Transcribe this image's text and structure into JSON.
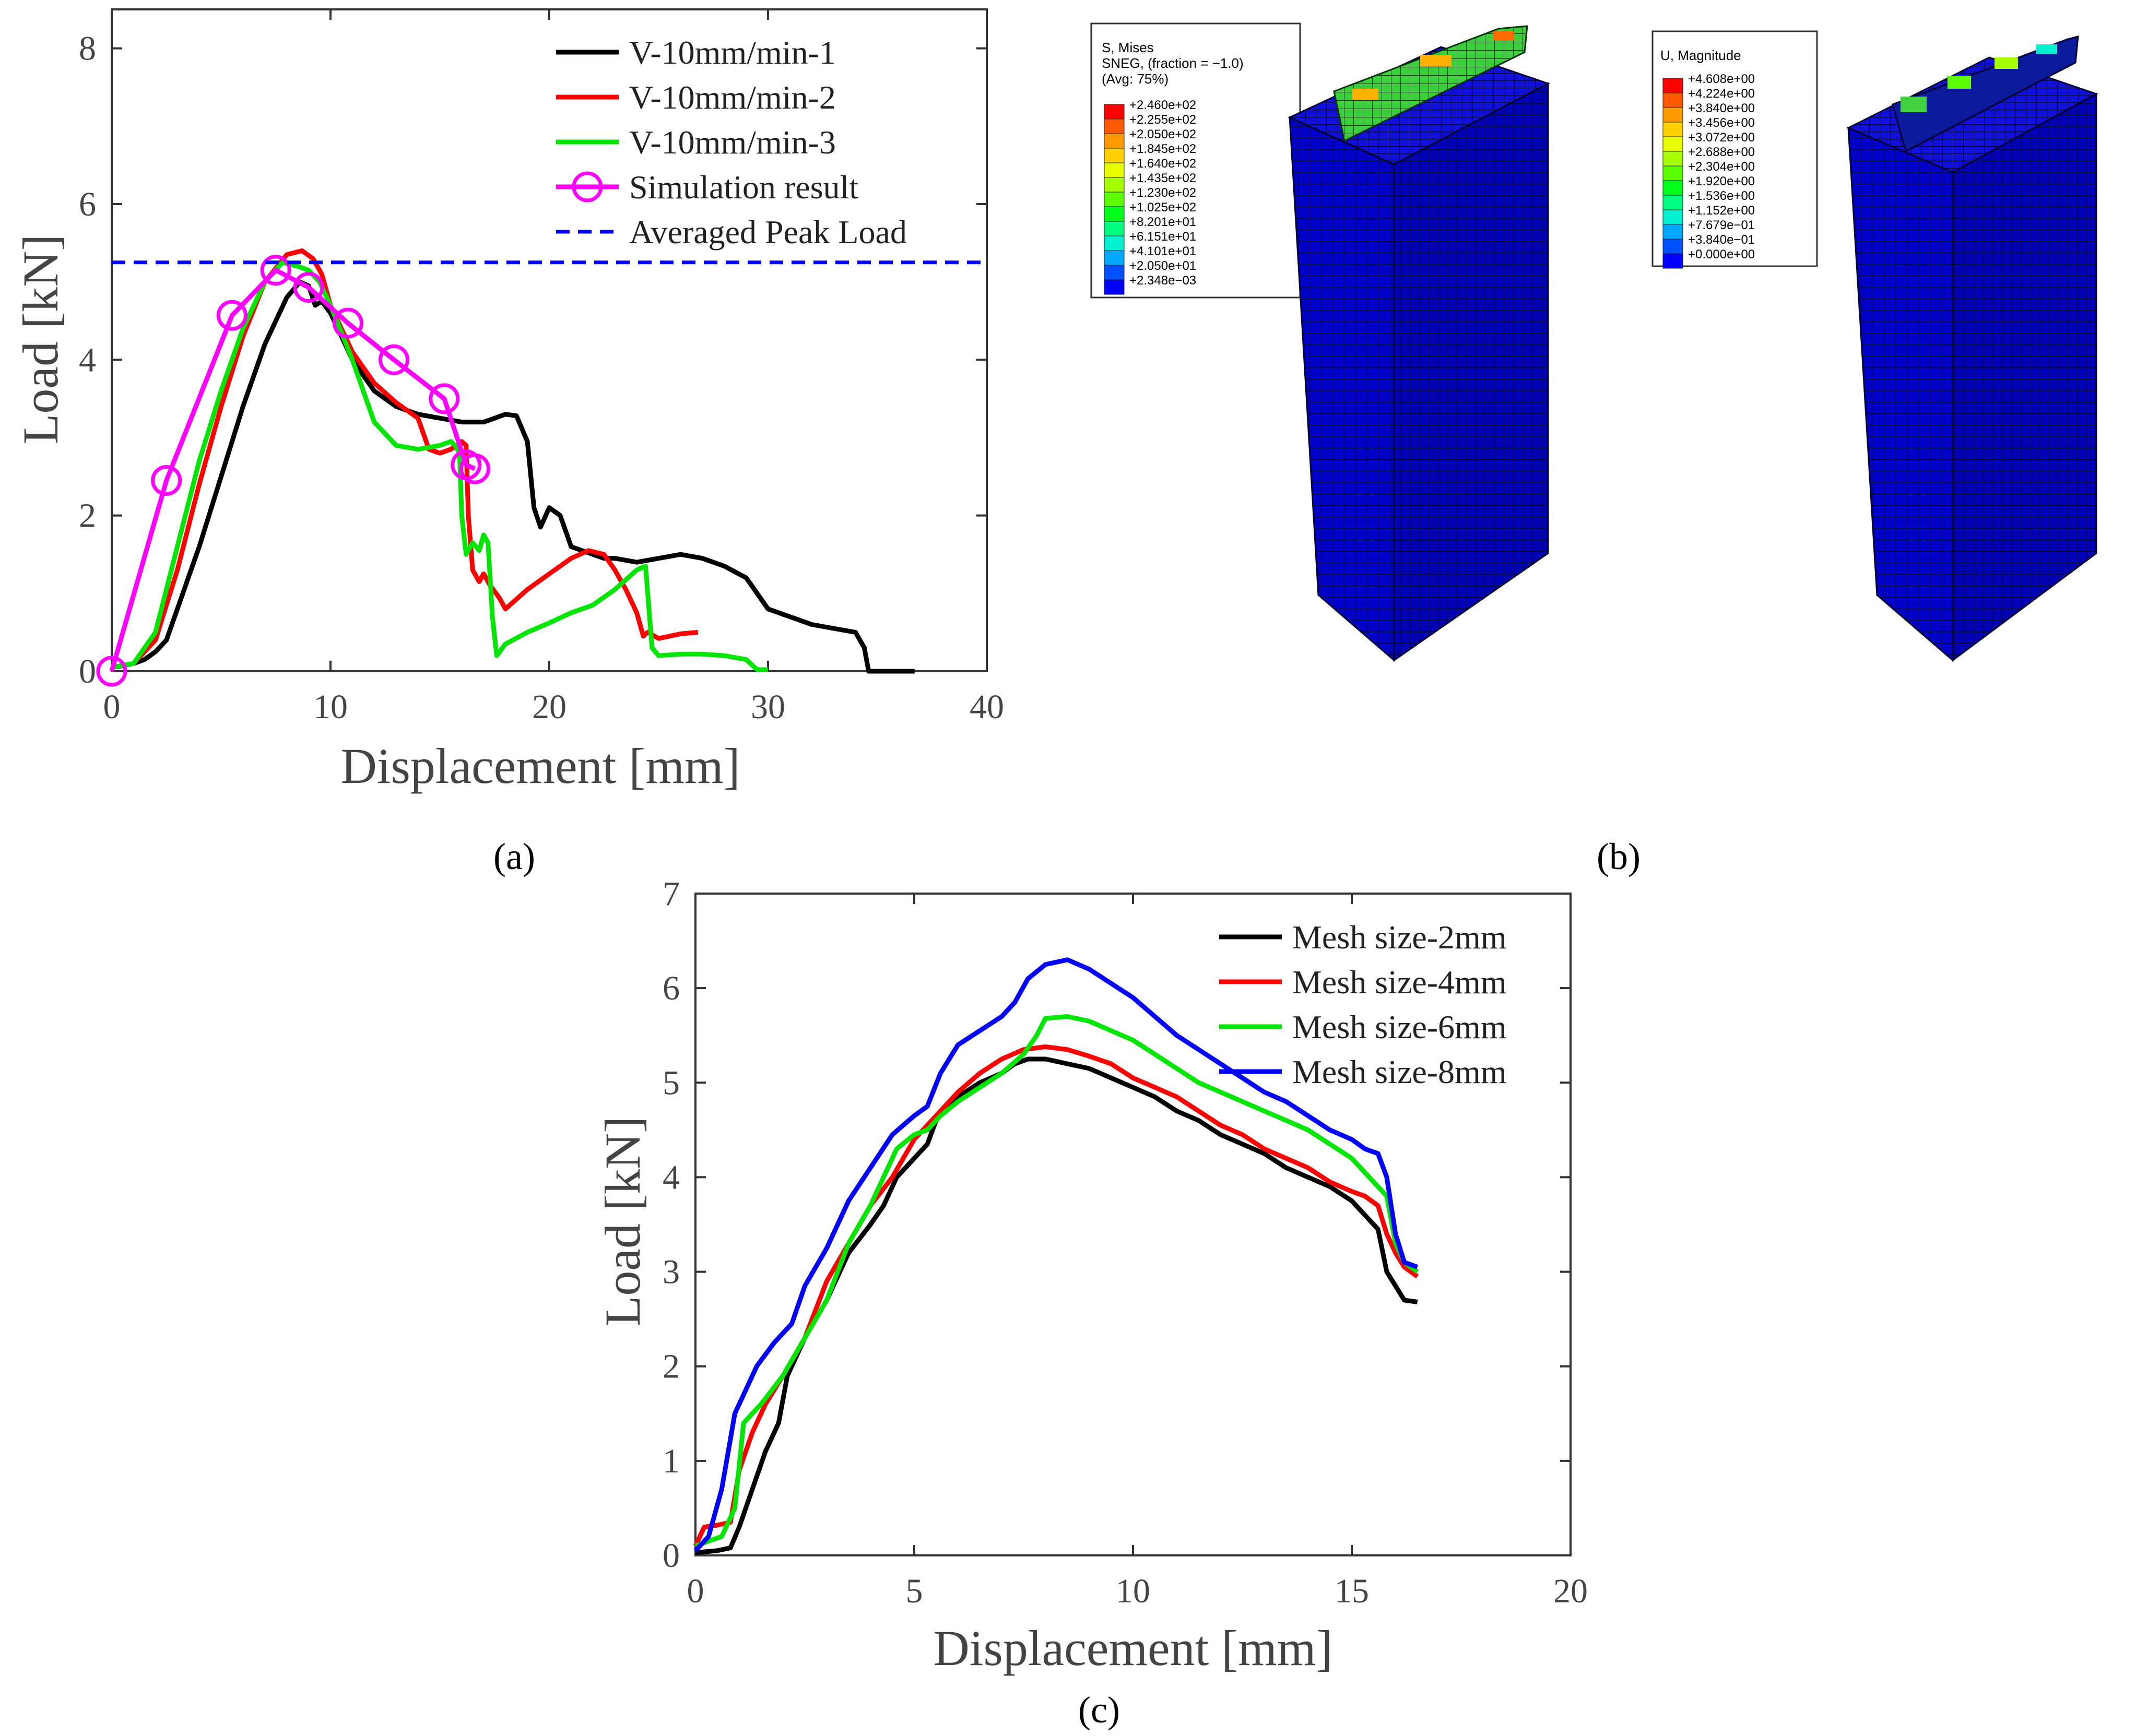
{
  "chart_data": [
    {
      "id": "a",
      "type": "line",
      "panel_label": "(a)",
      "xlabel": "Displacement [mm]",
      "ylabel": "Load [kN]",
      "xlim": [
        0,
        40
      ],
      "ylim": [
        0,
        8.5
      ],
      "xticks": [
        0,
        10,
        20,
        30,
        40
      ],
      "yticks": [
        0,
        2,
        4,
        6,
        8
      ],
      "legend_position": "top-right",
      "series": [
        {
          "name": "V-10mm/min-1",
          "color": "#000000",
          "style": "solid",
          "x": [
            0,
            0.5,
            1,
            1.5,
            2,
            2.5,
            3,
            4,
            5,
            6,
            7,
            8,
            8.6,
            9,
            9.3,
            9.6,
            10,
            10.5,
            11,
            12,
            13,
            14,
            15,
            16,
            17,
            17.5,
            18,
            18.5,
            19,
            19.3,
            19.6,
            20,
            20.5,
            21,
            21.5,
            22,
            22.5,
            23,
            24,
            25,
            26,
            27,
            28,
            29,
            29.5,
            30,
            31,
            32,
            33,
            34,
            34.4,
            34.6,
            35,
            36,
            36.7
          ],
          "y": [
            0.05,
            0.07,
            0.1,
            0.15,
            0.25,
            0.4,
            0.8,
            1.6,
            2.5,
            3.4,
            4.2,
            4.8,
            5.0,
            4.95,
            4.7,
            4.75,
            4.6,
            4.3,
            4.0,
            3.6,
            3.4,
            3.3,
            3.25,
            3.2,
            3.2,
            3.25,
            3.3,
            3.28,
            2.95,
            2.1,
            1.85,
            2.1,
            2.0,
            1.6,
            1.55,
            1.5,
            1.45,
            1.45,
            1.4,
            1.45,
            1.5,
            1.45,
            1.35,
            1.2,
            1.0,
            0.8,
            0.7,
            0.6,
            0.55,
            0.5,
            0.3,
            0.0,
            0.0,
            0.0,
            0.0
          ]
        },
        {
          "name": "V-10mm/min-2",
          "color": "#ff0000",
          "style": "solid",
          "x": [
            0,
            1,
            2,
            3,
            4,
            5,
            6,
            7,
            8,
            8.7,
            9.2,
            9.6,
            10,
            11,
            12,
            13,
            14,
            14.5,
            15,
            15.5,
            16,
            16.2,
            16.3,
            16.5,
            16.8,
            17,
            17.3,
            17.7,
            18,
            19,
            20,
            21,
            21.8,
            22.5,
            23,
            23.5,
            24,
            24.3,
            24.5,
            25,
            26,
            26.8
          ],
          "y": [
            0.05,
            0.1,
            0.4,
            1.3,
            2.4,
            3.4,
            4.3,
            5.0,
            5.35,
            5.4,
            5.3,
            5.1,
            4.7,
            4.1,
            3.7,
            3.45,
            3.25,
            2.85,
            2.8,
            2.85,
            2.95,
            2.9,
            2.0,
            1.3,
            1.15,
            1.25,
            1.1,
            0.95,
            0.8,
            1.05,
            1.25,
            1.45,
            1.55,
            1.5,
            1.3,
            1.05,
            0.75,
            0.45,
            0.5,
            0.42,
            0.48,
            0.5
          ]
        },
        {
          "name": "V-10mm/min-3",
          "color": "#00e600",
          "style": "solid",
          "x": [
            0,
            1,
            2,
            3,
            4,
            5,
            6,
            7,
            7.8,
            8.5,
            9,
            9.5,
            10,
            11,
            12,
            13,
            14,
            15,
            15.5,
            15.7,
            15.9,
            16,
            16.2,
            16.5,
            16.8,
            17,
            17.2,
            17.4,
            17.6,
            18,
            19,
            20,
            21,
            22,
            23,
            24,
            24.4,
            24.7,
            25,
            26,
            27,
            28,
            29,
            29.5,
            30
          ],
          "y": [
            0.05,
            0.1,
            0.5,
            1.6,
            2.7,
            3.6,
            4.4,
            5.0,
            5.25,
            5.2,
            5.15,
            5.0,
            4.7,
            4.0,
            3.2,
            2.9,
            2.85,
            2.9,
            2.95,
            2.9,
            2.8,
            2.0,
            1.5,
            1.65,
            1.55,
            1.75,
            1.65,
            0.7,
            0.2,
            0.35,
            0.5,
            0.62,
            0.75,
            0.85,
            1.05,
            1.3,
            1.35,
            0.3,
            0.2,
            0.22,
            0.22,
            0.2,
            0.15,
            0.02,
            0.02
          ]
        },
        {
          "name": "Simulation result",
          "color": "#ff00ff",
          "style": "solid",
          "marker": "circle",
          "x": [
            0,
            2.5,
            5.5,
            7.5,
            9.0,
            10.8,
            12.9,
            15.2,
            16.2,
            16.6
          ],
          "y": [
            0,
            2.45,
            4.57,
            5.15,
            4.93,
            4.47,
            4.0,
            3.5,
            2.65,
            2.6
          ]
        },
        {
          "name": "Averaged Peak Load",
          "color": "#0000ff",
          "style": "dashed",
          "x": [
            0,
            40
          ],
          "y": [
            5.25,
            5.25
          ]
        }
      ]
    },
    {
      "id": "c",
      "type": "line",
      "panel_label": "(c)",
      "xlabel": "Displacement [mm]",
      "ylabel": "Load [kN]",
      "xlim": [
        0,
        20
      ],
      "ylim": [
        0,
        7
      ],
      "xticks": [
        0,
        5,
        10,
        15,
        20
      ],
      "yticks": [
        0,
        1,
        2,
        3,
        4,
        5,
        6,
        7
      ],
      "legend_position": "top-right",
      "series": [
        {
          "name": "Mesh size-2mm",
          "color": "#000000",
          "x": [
            0,
            0.5,
            0.8,
            1,
            1.3,
            1.6,
            1.9,
            2.1,
            2.5,
            3,
            3.5,
            4,
            4.3,
            4.6,
            5,
            5.3,
            5.5,
            6,
            6.5,
            7,
            7.3,
            7.6,
            8,
            8.5,
            9,
            9.5,
            10,
            10.5,
            11,
            11.5,
            12,
            12.5,
            13,
            13.5,
            14,
            14.5,
            15,
            15.3,
            15.6,
            15.8,
            16,
            16.2,
            16.5
          ],
          "y": [
            0.03,
            0.05,
            0.08,
            0.3,
            0.7,
            1.1,
            1.4,
            1.9,
            2.3,
            2.7,
            3.2,
            3.5,
            3.7,
            4.0,
            4.2,
            4.35,
            4.6,
            4.85,
            5.0,
            5.1,
            5.2,
            5.25,
            5.25,
            5.2,
            5.15,
            5.05,
            4.95,
            4.85,
            4.7,
            4.6,
            4.45,
            4.35,
            4.25,
            4.1,
            4.0,
            3.9,
            3.75,
            3.6,
            3.45,
            3.0,
            2.85,
            2.7,
            2.68
          ]
        },
        {
          "name": "Mesh size-4mm",
          "color": "#ff0000",
          "x": [
            0,
            0.2,
            0.5,
            0.8,
            1,
            1.3,
            1.6,
            2,
            2.5,
            3,
            3.5,
            4,
            4.5,
            5,
            5.5,
            6,
            6.5,
            7,
            7.5,
            8,
            8.5,
            9,
            9.5,
            10,
            10.5,
            11,
            11.5,
            12,
            12.5,
            13,
            13.5,
            14,
            14.5,
            15,
            15.3,
            15.6,
            15.8,
            16,
            16.2,
            16.5
          ],
          "y": [
            0.1,
            0.3,
            0.32,
            0.35,
            0.9,
            1.3,
            1.6,
            1.9,
            2.3,
            2.9,
            3.3,
            3.7,
            4.0,
            4.4,
            4.65,
            4.9,
            5.1,
            5.25,
            5.35,
            5.38,
            5.35,
            5.28,
            5.2,
            5.05,
            4.95,
            4.85,
            4.7,
            4.55,
            4.45,
            4.3,
            4.2,
            4.1,
            3.95,
            3.85,
            3.8,
            3.7,
            3.4,
            3.2,
            3.05,
            2.95
          ]
        },
        {
          "name": "Mesh size-6mm",
          "color": "#00e600",
          "x": [
            0,
            0.3,
            0.6,
            0.9,
            1.1,
            1.5,
            2,
            2.5,
            3,
            3.5,
            4,
            4.3,
            4.6,
            5,
            5.3,
            5.6,
            6,
            6.5,
            7,
            7.5,
            7.8,
            8,
            8.5,
            9,
            9.5,
            10,
            10.5,
            11,
            11.5,
            12,
            12.5,
            13,
            13.5,
            14,
            14.5,
            15,
            15.3,
            15.6,
            15.8,
            16,
            16.2,
            16.5
          ],
          "y": [
            0.1,
            0.15,
            0.2,
            0.5,
            1.4,
            1.6,
            1.9,
            2.3,
            2.7,
            3.3,
            3.7,
            4.0,
            4.3,
            4.45,
            4.5,
            4.65,
            4.8,
            4.95,
            5.1,
            5.3,
            5.5,
            5.68,
            5.7,
            5.65,
            5.55,
            5.45,
            5.3,
            5.15,
            5.0,
            4.9,
            4.8,
            4.7,
            4.6,
            4.5,
            4.35,
            4.2,
            4.05,
            3.9,
            3.8,
            3.3,
            3.1,
            3.0
          ]
        },
        {
          "name": "Mesh size-8mm",
          "color": "#0000ff",
          "x": [
            0,
            0.3,
            0.6,
            0.9,
            1.1,
            1.4,
            1.8,
            2.2,
            2.5,
            3,
            3.5,
            4,
            4.5,
            5,
            5.3,
            5.6,
            6,
            6.5,
            7,
            7.3,
            7.6,
            8,
            8.5,
            9,
            9.5,
            10,
            10.5,
            11,
            11.5,
            12,
            12.5,
            13,
            13.5,
            14,
            14.5,
            15,
            15.3,
            15.6,
            15.8,
            16,
            16.2,
            16.5
          ],
          "y": [
            0.05,
            0.2,
            0.7,
            1.5,
            1.7,
            2.0,
            2.25,
            2.45,
            2.85,
            3.25,
            3.75,
            4.1,
            4.45,
            4.65,
            4.75,
            5.1,
            5.4,
            5.55,
            5.7,
            5.85,
            6.1,
            6.25,
            6.3,
            6.2,
            6.05,
            5.9,
            5.7,
            5.5,
            5.35,
            5.2,
            5.05,
            4.9,
            4.8,
            4.65,
            4.5,
            4.4,
            4.3,
            4.25,
            4.0,
            3.4,
            3.1,
            3.05
          ]
        }
      ]
    }
  ],
  "panel_b": {
    "panel_label": "(b)",
    "stress_legend": {
      "title_lines": [
        "S, Mises",
        "SNEG, (fraction = −1.0)",
        "(Avg: 75%)"
      ],
      "values": [
        "+2.460e+02",
        "+2.255e+02",
        "+2.050e+02",
        "+1.845e+02",
        "+1.640e+02",
        "+1.435e+02",
        "+1.230e+02",
        "+1.025e+02",
        "+8.201e+01",
        "+6.151e+01",
        "+4.101e+01",
        "+2.050e+01",
        "+2.348e−03"
      ],
      "colors": [
        "#ff0000",
        "#ff5a00",
        "#ff9a00",
        "#ffd000",
        "#e8ff00",
        "#a6ff00",
        "#5cff00",
        "#00ff1a",
        "#00ff80",
        "#00f0d0",
        "#00a8ff",
        "#0050ff",
        "#0000ff"
      ]
    },
    "displacement_legend": {
      "title_lines": [
        "U, Magnitude"
      ],
      "values": [
        "+4.608e+00",
        "+4.224e+00",
        "+3.840e+00",
        "+3.456e+00",
        "+3.072e+00",
        "+2.688e+00",
        "+2.304e+00",
        "+1.920e+00",
        "+1.536e+00",
        "+1.152e+00",
        "+7.679e−01",
        "+3.840e−01",
        "+0.000e+00"
      ],
      "colors": [
        "#ff0000",
        "#ff5a00",
        "#ff9a00",
        "#ffd000",
        "#e8ff00",
        "#a6ff00",
        "#5cff00",
        "#00ff1a",
        "#00ff80",
        "#00f0d0",
        "#00a8ff",
        "#0050ff",
        "#0000ff"
      ]
    },
    "model_color": "#0000c8"
  }
}
